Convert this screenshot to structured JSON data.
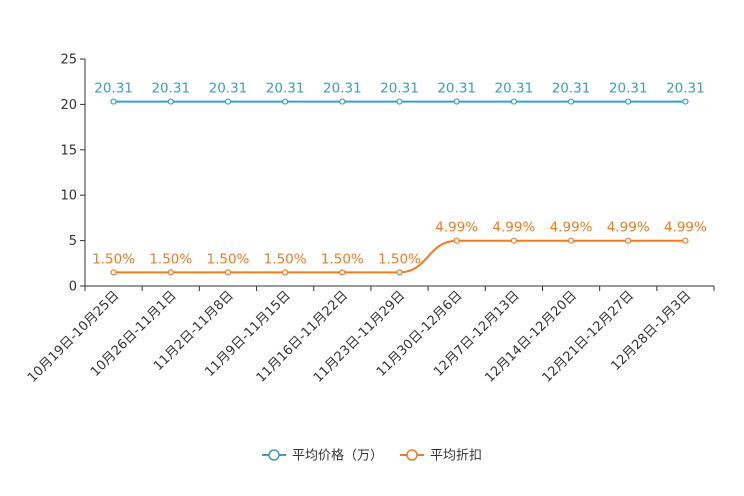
{
  "chart_data": {
    "type": "line",
    "title": "",
    "xlabel": "",
    "ylabel": "",
    "ylim": [
      0,
      25
    ],
    "yticks": [
      0,
      5,
      10,
      15,
      20,
      25
    ],
    "ytick_labels": [
      "0",
      "5",
      "10",
      "15",
      "20",
      "25"
    ],
    "grid": false,
    "legend_position": "bottom-center",
    "categories": [
      "10月19日-10月25日",
      "10月26日-11月1日",
      "11月2日-11月8日",
      "11月9日-11月15日",
      "11月16日-11月22日",
      "11月23日-11月29日",
      "11月30日-12月6日",
      "12月7日-12月13日",
      "12月14日-12月20日",
      "12月21日-12月27日",
      "12月28日-1月3日"
    ],
    "series": [
      {
        "name": "平均价格（万）",
        "color": "#3c9ccd",
        "values": [
          20.31,
          20.31,
          20.31,
          20.31,
          20.31,
          20.31,
          20.31,
          20.31,
          20.31,
          20.31,
          20.31
        ],
        "labels": [
          "20.31",
          "20.31",
          "20.31",
          "20.31",
          "20.31",
          "20.31",
          "20.31",
          "20.31",
          "20.31",
          "20.31",
          "20.31"
        ]
      },
      {
        "name": "平均折扣",
        "color": "#f47a1f",
        "values": [
          1.5,
          1.5,
          1.5,
          1.5,
          1.5,
          1.5,
          4.99,
          4.99,
          4.99,
          4.99,
          4.99
        ],
        "labels": [
          "1.50%",
          "1.50%",
          "1.50%",
          "1.50%",
          "1.50%",
          "1.50%",
          "4.99%",
          "4.99%",
          "4.99%",
          "4.99%",
          "4.99%"
        ]
      }
    ]
  }
}
